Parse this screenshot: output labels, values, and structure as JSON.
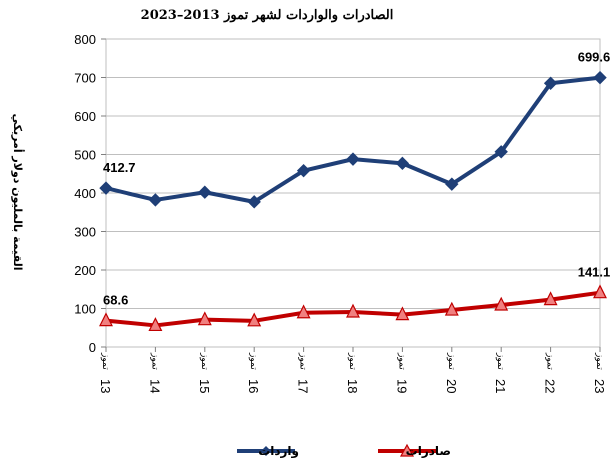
{
  "chart_data": {
    "type": "line",
    "title": "الصادرات والواردات لشهر تموز 2013–2023",
    "ylabel": "القيمة بالمليون دولار أمريكي",
    "xlabel": "",
    "ylim": [
      0,
      800
    ],
    "yticks": [
      0,
      100,
      200,
      300,
      400,
      500,
      600,
      700,
      800
    ],
    "grid": "horizontal",
    "legend": "bottom",
    "month_word": "تموز",
    "categories": [
      "13",
      "14",
      "15",
      "16",
      "17",
      "18",
      "19",
      "20",
      "21",
      "22",
      "23"
    ],
    "series": [
      {
        "name": "واردات",
        "color": "#1f3f77",
        "marker": "diamond",
        "values": [
          412.7,
          382,
          402,
          377,
          458,
          488,
          477,
          423,
          507,
          685,
          699.6
        ],
        "labels": {
          "0": "412.7",
          "10": "699.6"
        }
      },
      {
        "name": "صادرات",
        "color": "#c00000",
        "marker": "triangle",
        "marker_fill": "#f08080",
        "values": [
          68.6,
          56,
          71,
          68,
          89,
          91,
          84,
          96,
          109,
          123,
          141.1
        ],
        "labels": {
          "0": "68.6",
          "10": "141.1"
        }
      }
    ]
  }
}
